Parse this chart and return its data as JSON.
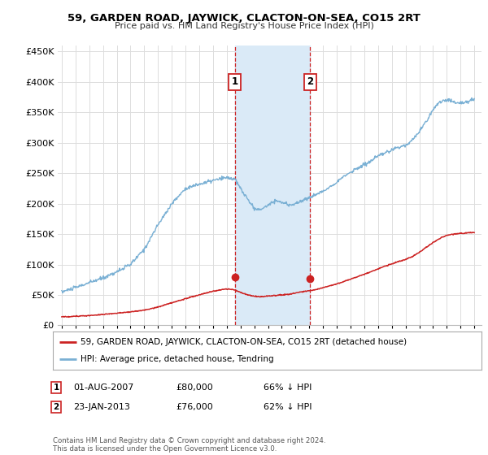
{
  "title": "59, GARDEN ROAD, JAYWICK, CLACTON-ON-SEA, CO15 2RT",
  "subtitle": "Price paid vs. HM Land Registry's House Price Index (HPI)",
  "hpi_color": "#7ab0d4",
  "price_color": "#cc2222",
  "background_color": "#ffffff",
  "grid_color": "#dddddd",
  "highlight_color": "#daeaf7",
  "sale1_date_num": 2007.583,
  "sale1_price": 80000,
  "sale1_label": "1",
  "sale1_pct": "66% ↓ HPI",
  "sale1_date_str": "01-AUG-2007",
  "sale2_date_num": 2013.07,
  "sale2_price": 76000,
  "sale2_label": "2",
  "sale2_pct": "62% ↓ HPI",
  "sale2_date_str": "23-JAN-2013",
  "legend_line1": "59, GARDEN ROAD, JAYWICK, CLACTON-ON-SEA, CO15 2RT (detached house)",
  "legend_line2": "HPI: Average price, detached house, Tendring",
  "footer": "Contains HM Land Registry data © Crown copyright and database right 2024.\nThis data is licensed under the Open Government Licence v3.0.",
  "ylim_max": 460000,
  "xmin": 1994.7,
  "xmax": 2025.5
}
